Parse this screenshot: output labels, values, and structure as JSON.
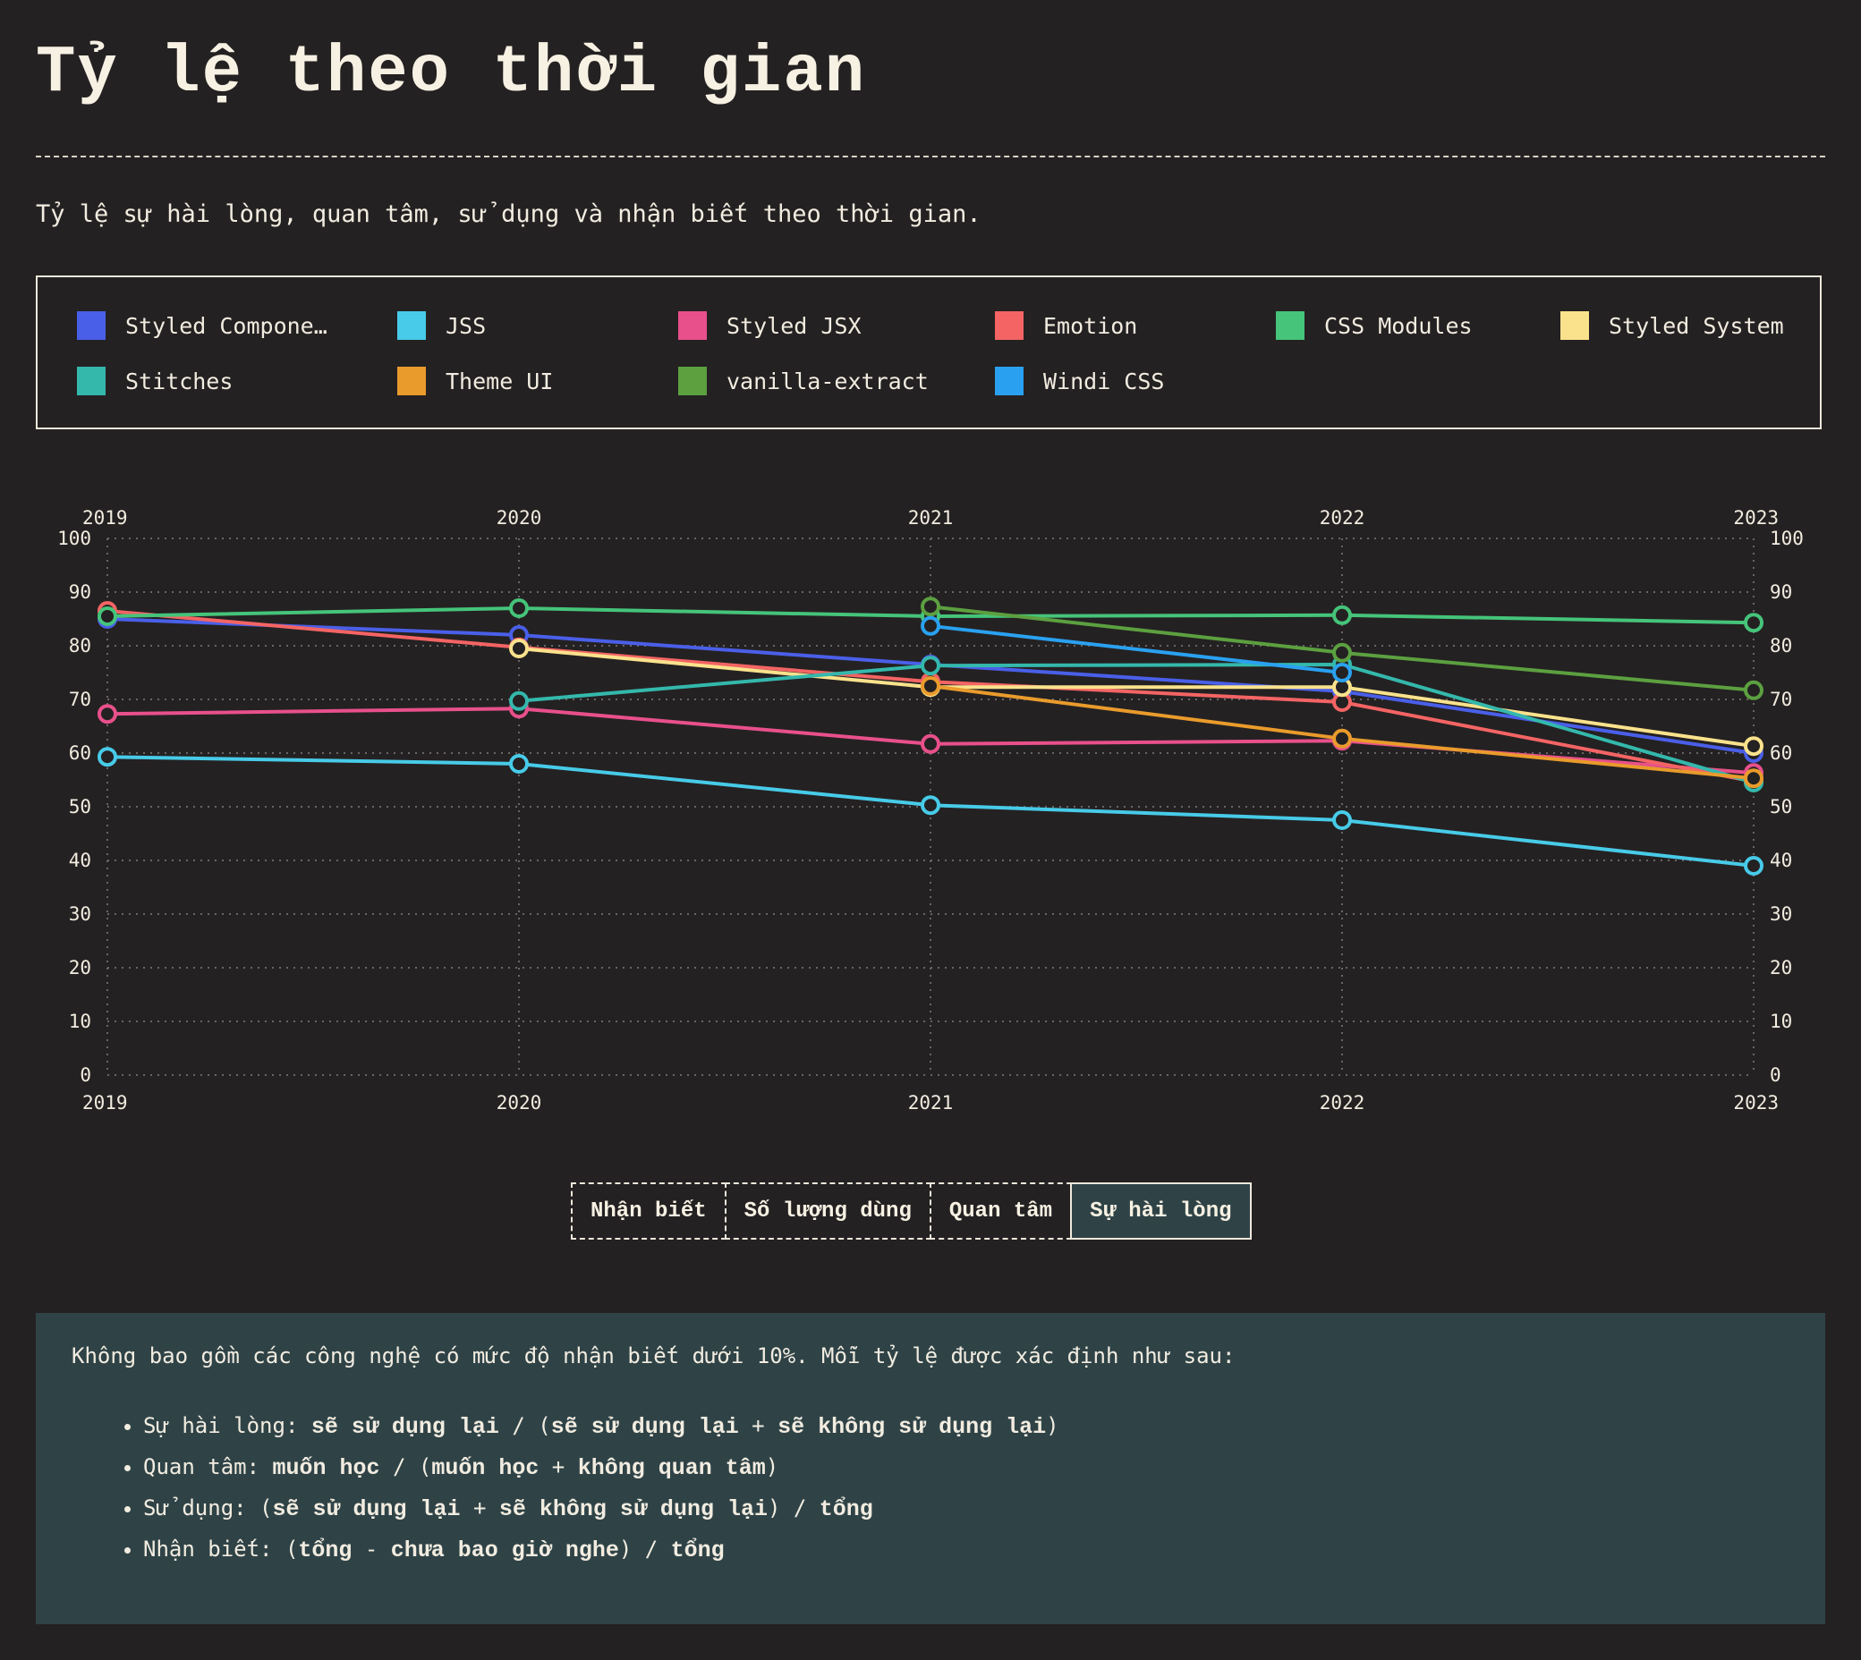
{
  "title": "Tỷ lệ theo thời gian",
  "subtitle": "Tỷ lệ sự hài lòng, quan tâm, sử dụng và nhận biết theo thời gian.",
  "tabs": [
    {
      "label": "Nhận biết",
      "active": false
    },
    {
      "label": "Số lượng dùng",
      "active": false
    },
    {
      "label": "Quan tâm",
      "active": false
    },
    {
      "label": "Sự hài lòng",
      "active": true
    }
  ],
  "note": {
    "intro": "Không bao gồm các công nghệ có mức độ nhận biết dưới 10%. Mỗi tỷ lệ được xác định như sau:",
    "items": [
      {
        "label": "Sự hài lòng:",
        "p1": "sẽ sử dụng lại",
        "s1": " / (",
        "p2": "sẽ sử dụng lại",
        "s2": " + ",
        "p3": "sẽ không sử dụng lại",
        "s3": ")"
      },
      {
        "label": "Quan tâm:",
        "p1": "muốn học",
        "s1": " / (",
        "p2": "muốn học",
        "s2": " + ",
        "p3": "không quan tâm",
        "s3": ")"
      },
      {
        "label": "Sử dụng:",
        "p1": "",
        "s1": "(",
        "p2": "sẽ sử dụng lại",
        "s2": " + ",
        "p3": "sẽ không sử dụng lại",
        "s3": ") / ",
        "p4": "tổng"
      },
      {
        "label": "Nhận biết:",
        "p1": "",
        "s1": "(",
        "p2": "tổng",
        "s2": " - ",
        "p3": "chưa bao giờ nghe",
        "s3": ") / ",
        "p4": "tổng"
      }
    ]
  },
  "chart_data": {
    "type": "line",
    "x": [
      2019,
      2020,
      2021,
      2022,
      2023
    ],
    "ylim": [
      0,
      100
    ],
    "yticks": [
      0,
      10,
      20,
      30,
      40,
      50,
      60,
      70,
      80,
      90,
      100
    ],
    "grid": true,
    "legend_position": "top",
    "series": [
      {
        "name": "Styled Components",
        "legend_label": "Styled Compone…",
        "color": "#4a5fe8",
        "values": [
          85,
          82,
          76.5,
          71.5,
          60
        ]
      },
      {
        "name": "JSS",
        "color": "#47cbe8",
        "values": [
          59.3,
          58,
          50.3,
          47.5,
          39
        ]
      },
      {
        "name": "Styled JSX",
        "color": "#e8508b",
        "values": [
          67.3,
          68.3,
          61.7,
          62.3,
          56.3
        ]
      },
      {
        "name": "Emotion",
        "color": "#f46464",
        "values": [
          86.5,
          79.7,
          73.3,
          69.5,
          54.7
        ]
      },
      {
        "name": "CSS Modules",
        "color": "#45c47a",
        "values": [
          85.5,
          87,
          85.5,
          85.7,
          84.3
        ]
      },
      {
        "name": "Styled System",
        "color": "#fae28c",
        "values": [
          null,
          79.5,
          72.3,
          72.3,
          61.3
        ]
      },
      {
        "name": "Stitches",
        "color": "#34b8ac",
        "values": [
          null,
          69.7,
          76.3,
          76.5,
          54.5
        ]
      },
      {
        "name": "Theme UI",
        "color": "#e99b2c",
        "values": [
          null,
          null,
          72.5,
          62.7,
          55.3
        ]
      },
      {
        "name": "vanilla-extract",
        "color": "#5ca040",
        "values": [
          null,
          null,
          87.3,
          78.7,
          71.7
        ]
      },
      {
        "name": "Windi CSS",
        "color": "#2aa1f0",
        "values": [
          null,
          null,
          83.7,
          75,
          null
        ]
      }
    ]
  }
}
